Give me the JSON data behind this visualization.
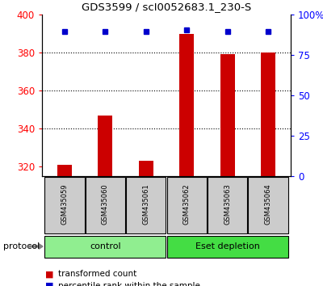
{
  "title": "GDS3599 / scI0052683.1_230-S",
  "samples": [
    "GSM435059",
    "GSM435060",
    "GSM435061",
    "GSM435062",
    "GSM435063",
    "GSM435064"
  ],
  "red_values": [
    321,
    347,
    323,
    390,
    379,
    380
  ],
  "blue_values_left": [
    391,
    391,
    391,
    392,
    391,
    391
  ],
  "ylim_left": [
    315,
    400
  ],
  "ylim_right": [
    0,
    100
  ],
  "y_ticks_left": [
    320,
    340,
    360,
    380,
    400
  ],
  "y_ticks_right": [
    0,
    25,
    50,
    75,
    100
  ],
  "y_ticks_right_labels": [
    "0",
    "25",
    "50",
    "75",
    "100%"
  ],
  "grid_lines": [
    340,
    360,
    380
  ],
  "groups": [
    {
      "label": "control",
      "samples": [
        0,
        1,
        2
      ],
      "color": "#90EE90"
    },
    {
      "label": "Eset depletion",
      "samples": [
        3,
        4,
        5
      ],
      "color": "#44DD44"
    }
  ],
  "bar_color": "#CC0000",
  "dot_color": "#0000CC",
  "bar_width": 0.35,
  "sample_box_color": "#CCCCCC",
  "protocol_label": "protocol",
  "legend_items": [
    {
      "color": "#CC0000",
      "label": "transformed count"
    },
    {
      "color": "#0000CC",
      "label": "percentile rank within the sample"
    }
  ],
  "figure_width": 4.0,
  "figure_height": 3.54,
  "dpi": 100
}
